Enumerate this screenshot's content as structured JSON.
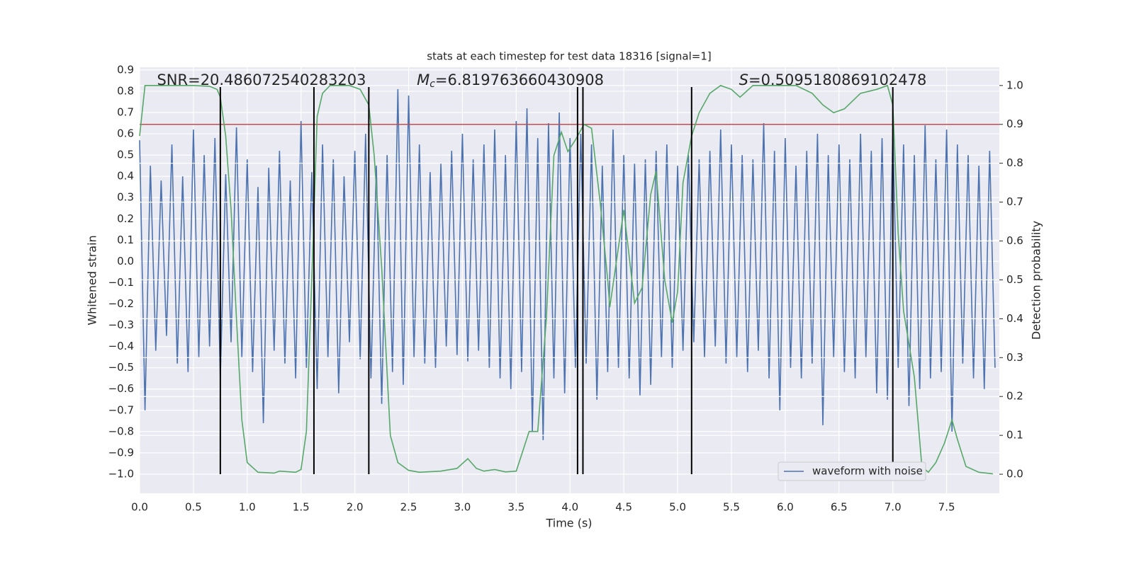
{
  "chart_data": {
    "type": "line",
    "title": "stats at each timestep for test data 18316 [signal=1]",
    "x_label": "Time (s)",
    "y_label": "Whitened strain",
    "y2_label": "Detection probability",
    "xlim": [
      0,
      7.99
    ],
    "ylim": [
      -1.09,
      0.913
    ],
    "y2lim": [
      -0.049,
      1.047
    ],
    "xticks": [
      {
        "value": 0,
        "label": "0.0"
      },
      {
        "value": 0.5,
        "label": "0.5"
      },
      {
        "value": 1,
        "label": "1.0"
      },
      {
        "value": 1.5,
        "label": "1.5"
      },
      {
        "value": 2,
        "label": "2.0"
      },
      {
        "value": 2.5,
        "label": "2.5"
      },
      {
        "value": 3,
        "label": "3.0"
      },
      {
        "value": 3.5,
        "label": "3.5"
      },
      {
        "value": 4,
        "label": "4.0"
      },
      {
        "value": 4.5,
        "label": "4.5"
      },
      {
        "value": 5,
        "label": "5.0"
      },
      {
        "value": 5.5,
        "label": "5.5"
      },
      {
        "value": 6,
        "label": "6.0"
      },
      {
        "value": 6.5,
        "label": "6.5"
      },
      {
        "value": 7,
        "label": "7.0"
      },
      {
        "value": 7.5,
        "label": "7.5"
      }
    ],
    "yticks": [
      {
        "value": 0.9,
        "label": "0.9"
      },
      {
        "value": 0.8,
        "label": "0.8"
      },
      {
        "value": 0.7,
        "label": "0.7"
      },
      {
        "value": 0.6,
        "label": "0.6"
      },
      {
        "value": 0.5,
        "label": "0.5"
      },
      {
        "value": 0.4,
        "label": "0.4"
      },
      {
        "value": 0.3,
        "label": "0.3"
      },
      {
        "value": 0.2,
        "label": "0.2"
      },
      {
        "value": 0.1,
        "label": "0.1"
      },
      {
        "value": 0,
        "label": "0.0"
      },
      {
        "value": -0.1,
        "label": "−0.1"
      },
      {
        "value": -0.2,
        "label": "−0.2"
      },
      {
        "value": -0.3,
        "label": "−0.3"
      },
      {
        "value": -0.4,
        "label": "−0.4"
      },
      {
        "value": -0.5,
        "label": "−0.5"
      },
      {
        "value": -0.6,
        "label": "−0.6"
      },
      {
        "value": -0.7,
        "label": "−0.7"
      },
      {
        "value": -0.8,
        "label": "−0.8"
      },
      {
        "value": -0.9,
        "label": "−0.9"
      },
      {
        "value": -1,
        "label": "−1.0"
      }
    ],
    "y2ticks": [
      {
        "value": 1,
        "label": "1.0"
      },
      {
        "value": 0.9,
        "label": "0.9"
      },
      {
        "value": 0.8,
        "label": "0.8"
      },
      {
        "value": 0.7,
        "label": "0.7"
      },
      {
        "value": 0.6,
        "label": "0.6"
      },
      {
        "value": 0.5,
        "label": "0.5"
      },
      {
        "value": 0.4,
        "label": "0.4"
      },
      {
        "value": 0.3,
        "label": "0.3"
      },
      {
        "value": 0.2,
        "label": "0.2"
      },
      {
        "value": 0.1,
        "label": "0.1"
      },
      {
        "value": 0,
        "label": "0.0"
      }
    ],
    "grid": true,
    "legend_loc": "lower right",
    "series": [
      {
        "name": "waveform with noise",
        "color": "#4c72b0",
        "x": [
          0,
          0.05,
          0.1,
          0.15,
          0.2,
          0.25,
          0.3,
          0.35,
          0.4,
          0.45,
          0.5,
          0.55,
          0.6,
          0.65,
          0.7,
          0.75,
          0.8,
          0.85,
          0.9,
          0.95,
          1,
          1.05,
          1.1,
          1.15,
          1.2,
          1.25,
          1.3,
          1.35,
          1.4,
          1.45,
          1.5,
          1.55,
          1.6,
          1.65,
          1.7,
          1.75,
          1.8,
          1.85,
          1.9,
          1.95,
          2,
          2.05,
          2.1,
          2.15,
          2.2,
          2.25,
          2.3,
          2.35,
          2.4,
          2.45,
          2.5,
          2.55,
          2.6,
          2.65,
          2.7,
          2.75,
          2.8,
          2.85,
          2.9,
          2.95,
          3,
          3.05,
          3.1,
          3.15,
          3.2,
          3.25,
          3.3,
          3.35,
          3.4,
          3.45,
          3.5,
          3.55,
          3.6,
          3.65,
          3.7,
          3.75,
          3.8,
          3.85,
          3.9,
          3.95,
          4,
          4.05,
          4.1,
          4.15,
          4.2,
          4.25,
          4.3,
          4.35,
          4.4,
          4.45,
          4.5,
          4.55,
          4.6,
          4.65,
          4.7,
          4.75,
          4.8,
          4.85,
          4.9,
          4.95,
          5,
          5.05,
          5.1,
          5.15,
          5.2,
          5.25,
          5.3,
          5.35,
          5.4,
          5.45,
          5.5,
          5.55,
          5.6,
          5.65,
          5.7,
          5.75,
          5.8,
          5.85,
          5.9,
          5.95,
          6,
          6.05,
          6.1,
          6.15,
          6.2,
          6.25,
          6.3,
          6.35,
          6.4,
          6.45,
          6.5,
          6.55,
          6.6,
          6.65,
          6.7,
          6.75,
          6.8,
          6.85,
          6.9,
          6.95,
          7,
          7.05,
          7.1,
          7.15,
          7.2,
          7.25,
          7.3,
          7.35,
          7.4,
          7.45,
          7.5,
          7.55,
          7.6,
          7.65,
          7.7,
          7.75,
          7.8,
          7.85,
          7.9,
          7.95
        ],
        "values": [
          0.57,
          -0.7,
          0.45,
          -0.42,
          0.38,
          -0.35,
          0.55,
          -0.48,
          0.4,
          -0.52,
          0.62,
          -0.45,
          0.5,
          -0.4,
          0.58,
          -0.55,
          0.41,
          -0.38,
          0.63,
          -0.45,
          0.48,
          -0.52,
          0.35,
          -0.76,
          0.44,
          -0.42,
          0.52,
          -0.48,
          0.38,
          -0.55,
          0.66,
          -0.5,
          0.42,
          -0.6,
          0.55,
          -0.45,
          0.48,
          -0.62,
          0.4,
          -0.38,
          0.52,
          -0.46,
          0.6,
          -0.55,
          0.45,
          -0.67,
          0.5,
          -0.52,
          0.81,
          -0.58,
          0.78,
          -0.45,
          0.55,
          -0.48,
          0.42,
          -0.5,
          0.46,
          -0.4,
          0.52,
          -0.44,
          0.6,
          -0.47,
          0.48,
          -0.42,
          0.55,
          -0.5,
          0.62,
          -0.55,
          0.5,
          -0.6,
          0.66,
          -0.52,
          0.72,
          -0.8,
          0.58,
          -0.84,
          0.65,
          -0.55,
          0.7,
          -0.62,
          0.58,
          -0.5,
          0.6,
          -0.48,
          0.55,
          -0.65,
          0.45,
          -0.52,
          0.62,
          -0.5,
          0.5,
          -0.55,
          0.46,
          -0.63,
          0.48,
          -0.58,
          0.52,
          -0.45,
          0.55,
          -0.5,
          0.45,
          -0.42,
          0.5,
          -0.38,
          0.48,
          -0.45,
          0.52,
          -0.4,
          0.62,
          -0.48,
          0.55,
          -0.45,
          0.5,
          -0.52,
          0.48,
          -0.42,
          0.65,
          -0.55,
          0.52,
          -0.7,
          0.58,
          -0.5,
          0.45,
          -0.55,
          0.52,
          -0.48,
          0.6,
          -0.77,
          0.5,
          -0.45,
          0.55,
          -0.52,
          0.48,
          -0.55,
          0.6,
          -0.45,
          0.52,
          -0.62,
          0.58,
          -0.65,
          0.62,
          -0.5,
          0.55,
          -0.68,
          0.5,
          -0.6,
          0.64,
          -0.55,
          0.48,
          -0.52,
          0.62,
          -0.8,
          0.55,
          -0.48,
          0.5,
          -0.55,
          0.45,
          -0.6,
          0.52,
          -0.5
        ]
      },
      {
        "color": "#55a868",
        "axis": "y2",
        "x": [
          0,
          0.05,
          0.1,
          0.3,
          0.5,
          0.65,
          0.72,
          0.75,
          0.8,
          0.85,
          0.9,
          0.95,
          1.0,
          1.1,
          1.25,
          1.3,
          1.45,
          1.5,
          1.55,
          1.6,
          1.65,
          1.7,
          1.77,
          1.95,
          2.05,
          2.13,
          2.18,
          2.25,
          2.33,
          2.4,
          2.5,
          2.6,
          2.8,
          2.95,
          3.05,
          3.13,
          3.2,
          3.3,
          3.4,
          3.5,
          3.55,
          3.62,
          3.7,
          3.78,
          3.85,
          3.92,
          3.98,
          4.05,
          4.13,
          4.2,
          4.28,
          4.35,
          4.37,
          4.5,
          4.6,
          4.67,
          4.75,
          4.8,
          4.88,
          4.95,
          5.0,
          5.05,
          5.13,
          5.2,
          5.3,
          5.4,
          5.5,
          5.58,
          5.7,
          5.95,
          6.1,
          6.25,
          6.35,
          6.45,
          6.55,
          6.7,
          6.85,
          6.95,
          7.0,
          7.05,
          7.1,
          7.2,
          7.27,
          7.33,
          7.4,
          7.48,
          7.55,
          7.6,
          7.68,
          7.8,
          7.93
        ],
        "values": [
          0.87,
          1.0,
          1.0,
          1.0,
          1.0,
          0.998,
          0.99,
          0.97,
          0.87,
          0.68,
          0.4,
          0.14,
          0.03,
          0.005,
          0.003,
          0.008,
          0.005,
          0.012,
          0.11,
          0.5,
          0.92,
          0.98,
          1.0,
          1.0,
          0.99,
          0.95,
          0.82,
          0.53,
          0.1,
          0.03,
          0.01,
          0.005,
          0.008,
          0.015,
          0.04,
          0.015,
          0.008,
          0.012,
          0.006,
          0.008,
          0.05,
          0.11,
          0.11,
          0.4,
          0.82,
          0.88,
          0.83,
          0.86,
          0.9,
          0.89,
          0.7,
          0.5,
          0.43,
          0.68,
          0.44,
          0.48,
          0.72,
          0.78,
          0.5,
          0.39,
          0.47,
          0.75,
          0.87,
          0.93,
          0.98,
          1.0,
          0.99,
          0.97,
          1.0,
          1.0,
          1.0,
          0.98,
          0.95,
          0.93,
          0.94,
          0.98,
          0.99,
          1.0,
          0.95,
          0.62,
          0.42,
          0.25,
          0.02,
          0.005,
          0.03,
          0.08,
          0.14,
          0.09,
          0.02,
          0.005,
          0.001
        ]
      }
    ],
    "threshold": {
      "value": 0.9,
      "axis": "y2",
      "color": "#c44e52"
    },
    "vlines": {
      "x": [
        0.75,
        1.62,
        2.13,
        4.07,
        4.12,
        5.13,
        7.0
      ],
      "ymin": -1.0,
      "ymax": 0.82,
      "color": "#000000"
    },
    "annotations": [
      {
        "value": "SNR=20.486072540283203"
      },
      {
        "symbol": "M",
        "subscript": "c",
        "value": "=6.819763660430908"
      },
      {
        "symbol": "S",
        "value": "=0.5095180869102478"
      }
    ]
  }
}
